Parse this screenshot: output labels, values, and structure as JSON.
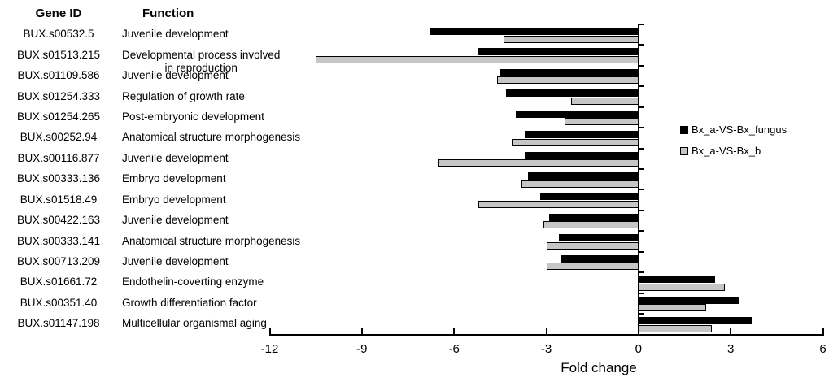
{
  "columns": {
    "gene_id_header": "Gene ID",
    "function_header": "Function"
  },
  "legend": {
    "position": "right",
    "items": [
      {
        "label": "Bx_a-VS-Bx_fungus",
        "color": "#000000"
      },
      {
        "label": "Bx_a-VS-Bx_b",
        "color": "#c6c6c6"
      }
    ]
  },
  "chart_data": {
    "type": "bar",
    "orientation": "horizontal",
    "title": "",
    "xlabel": "Fold change",
    "xlim": [
      -12,
      6
    ],
    "xticks": [
      -12,
      -9,
      -6,
      -3,
      0,
      3,
      6
    ],
    "grid": false,
    "categories": [
      "BUX.s00532.5",
      "BUX.s01513.215",
      "BUX.s01109.586",
      "BUX.s01254.333",
      "BUX.s01254.265",
      "BUX.s00252.94",
      "BUX.s00116.877",
      "BUX.s00333.136",
      "BUX.s01518.49",
      "BUX.s00422.163",
      "BUX.s00333.141",
      "BUX.s00713.209",
      "BUX.s01661.72",
      "BUX.s00351.40",
      "BUX.s01147.198"
    ],
    "functions": [
      [
        "Juvenile development"
      ],
      [
        "Developmental process involved",
        "in reproduction"
      ],
      [
        "Juvenile development"
      ],
      [
        "Regulation of growth rate"
      ],
      [
        "Post-embryonic development"
      ],
      [
        "Anatomical structure morphogenesis"
      ],
      [
        "Juvenile development"
      ],
      [
        "Embryo development"
      ],
      [
        "Embryo development"
      ],
      [
        "Juvenile development"
      ],
      [
        "Anatomical structure morphogenesis"
      ],
      [
        "Juvenile development"
      ],
      [
        "Endothelin-coverting enzyme"
      ],
      [
        "Growth differentiation factor"
      ],
      [
        "Multicellular organismal aging"
      ]
    ],
    "series": [
      {
        "name": "Bx_a-VS-Bx_fungus",
        "color": "#000000",
        "values": [
          -6.8,
          -5.2,
          -4.5,
          -4.3,
          -4.0,
          -3.7,
          -3.7,
          -3.6,
          -3.2,
          -2.9,
          -2.6,
          -2.5,
          2.5,
          3.3,
          3.7
        ]
      },
      {
        "name": "Bx_a-VS-Bx_b",
        "color": "#c6c6c6",
        "values": [
          -4.4,
          -10.5,
          -4.6,
          -2.2,
          -2.4,
          -4.1,
          -6.5,
          -3.8,
          -5.2,
          -3.1,
          -3.0,
          -3.0,
          2.8,
          2.2,
          2.4
        ]
      }
    ]
  }
}
